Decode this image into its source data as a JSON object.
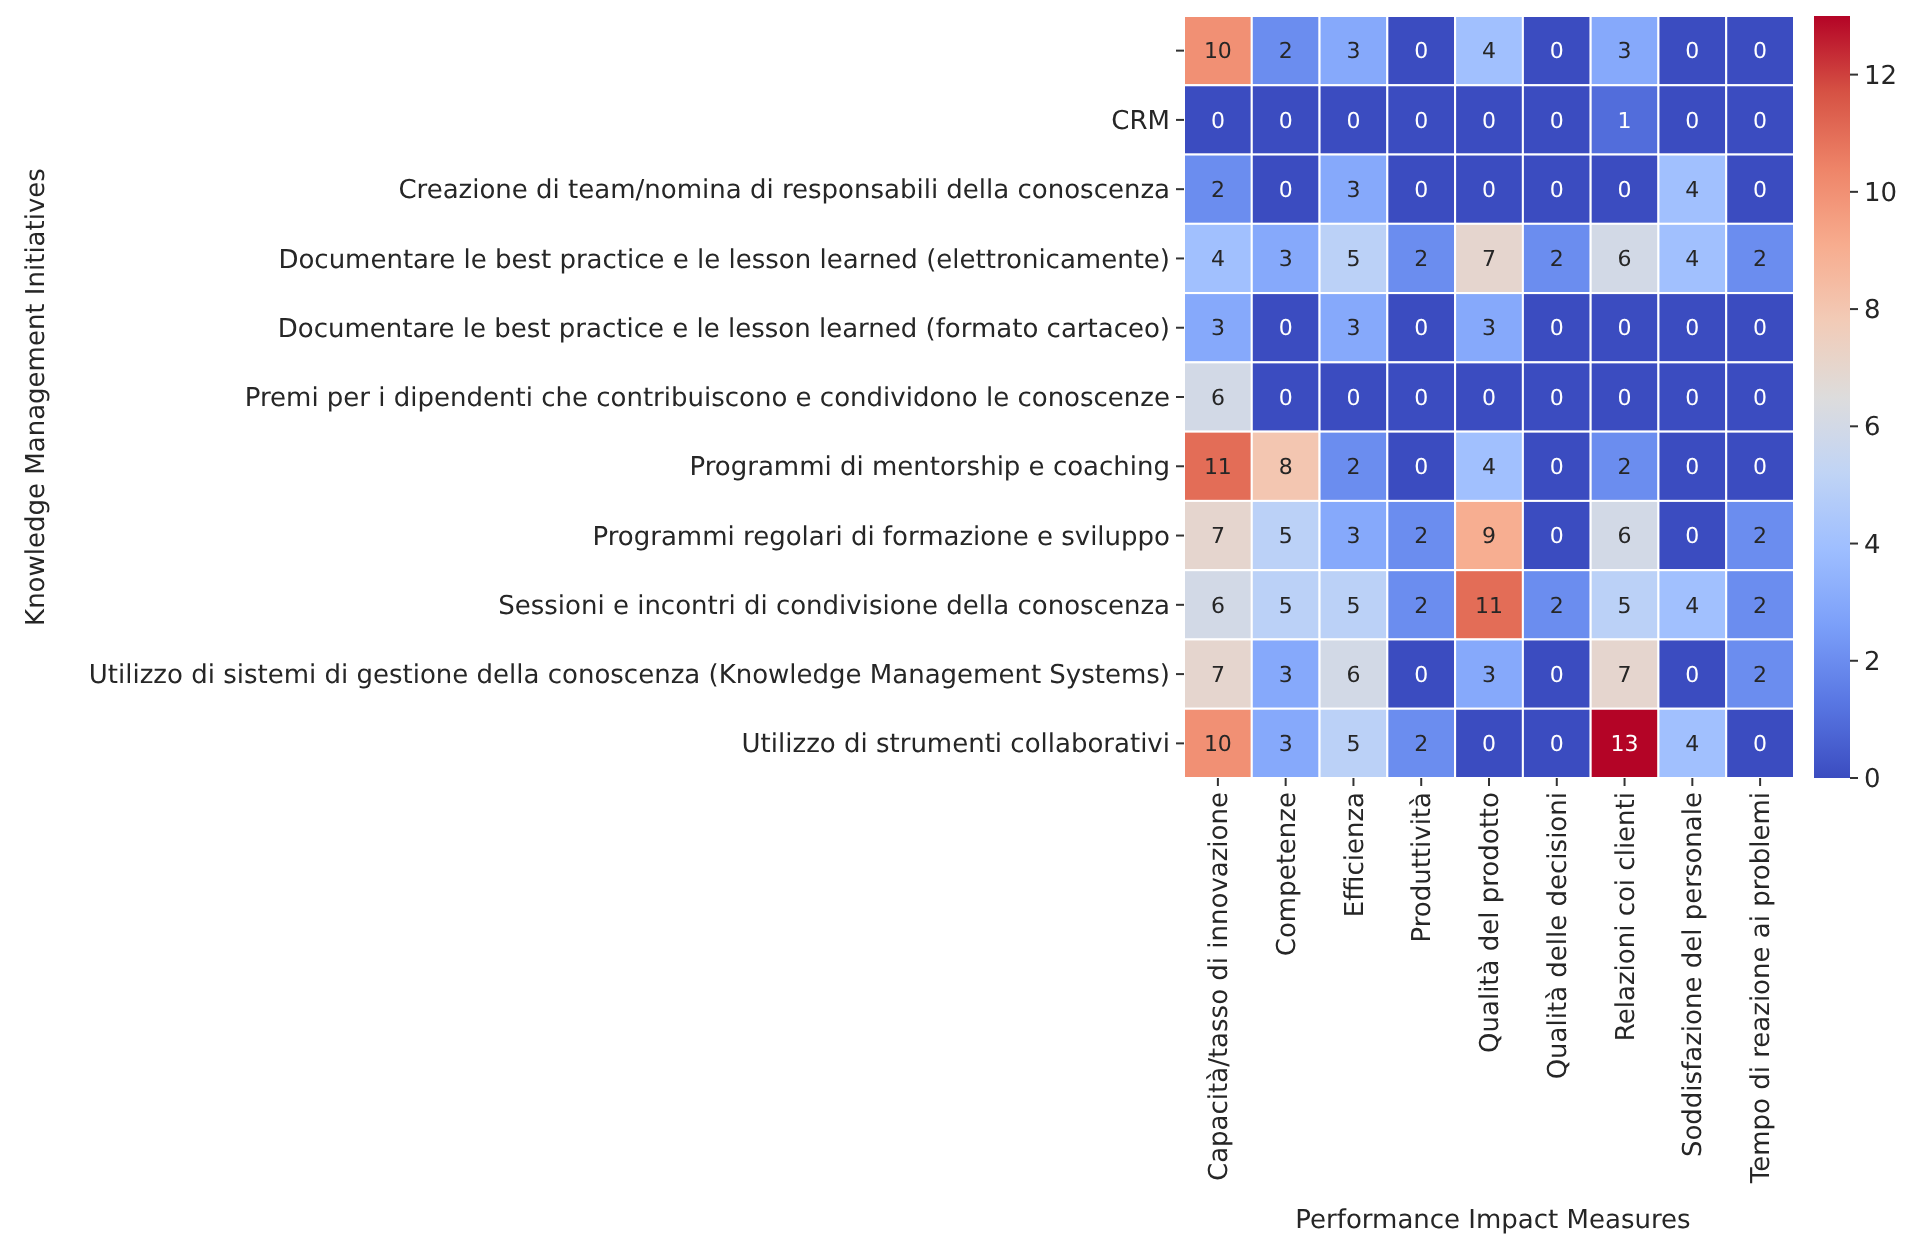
{
  "chart_data": {
    "type": "heatmap",
    "xlabel": "Performance Impact Measures",
    "ylabel": "Knowledge Management Initiatives",
    "categories": [
      "Capacità/tasso di innovazione",
      "Competenze",
      "Efficienza",
      "Produttività",
      "Qualità del prodotto",
      "Qualità delle decisioni",
      "Relazioni coi clienti",
      "Soddisfazione del personale",
      "Tempo di reazione ai problemi"
    ],
    "y_categories": [
      null,
      "CRM",
      "Creazione di team/nomina di responsabili della conoscenza",
      "Documentare le best practice e le lesson learned (elettronicamente)",
      "Documentare le best practice e le lesson learned (formato cartaceo)",
      "Premi per i dipendenti che contribuiscono e condividono le conoscenze",
      "Programmi di mentorship e coaching",
      "Programmi regolari di formazione e sviluppo",
      "Sessioni e incontri di condivisione della conoscenza",
      "Utilizzo di sistemi di gestione della conoscenza (Knowledge Management Systems)",
      "Utilizzo di strumenti collaborativi"
    ],
    "cells": [
      [
        10,
        2,
        3,
        0,
        4,
        0,
        3,
        0,
        0
      ],
      [
        0,
        0,
        0,
        0,
        0,
        0,
        1,
        0,
        0
      ],
      [
        2,
        0,
        3,
        0,
        0,
        0,
        0,
        4,
        0
      ],
      [
        4,
        3,
        5,
        2,
        7,
        2,
        6,
        4,
        2
      ],
      [
        3,
        0,
        3,
        0,
        3,
        0,
        0,
        0,
        0
      ],
      [
        6,
        0,
        0,
        0,
        0,
        0,
        0,
        0,
        0
      ],
      [
        11,
        8,
        2,
        0,
        4,
        0,
        2,
        0,
        0
      ],
      [
        7,
        5,
        3,
        2,
        9,
        0,
        6,
        0,
        2
      ],
      [
        6,
        5,
        5,
        2,
        11,
        2,
        5,
        4,
        2
      ],
      [
        7,
        3,
        6,
        0,
        3,
        0,
        7,
        0,
        2
      ],
      [
        10,
        3,
        5,
        2,
        0,
        0,
        13,
        4,
        0
      ]
    ],
    "data_labels": true,
    "clim": [
      0,
      13
    ],
    "cticks": [
      0,
      2,
      4,
      6,
      8,
      10,
      12
    ]
  }
}
